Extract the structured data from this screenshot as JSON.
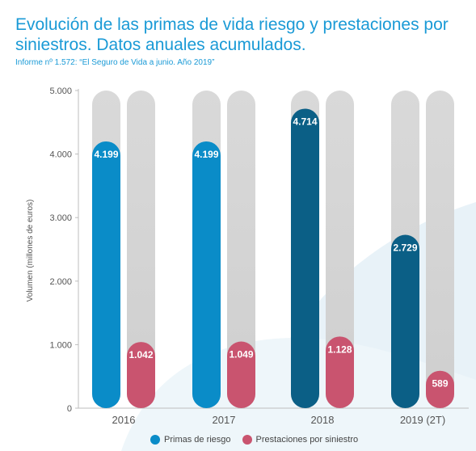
{
  "header": {
    "title": "Evolución de las primas de vida riesgo y prestaciones por siniestros. Datos anuales acumulados.",
    "subtitle": "Informe nº 1.572: “El Seguro de Vida a junio. Año 2019”"
  },
  "chart_data": {
    "type": "bar",
    "categories": [
      "2016",
      "2017",
      "2018",
      "2019 (2T)"
    ],
    "series": [
      {
        "name": "Primas de riesgo",
        "values": [
          4199,
          4199,
          4714,
          2729
        ],
        "labels": [
          "4.199",
          "4.199",
          "4.714",
          "2.729"
        ]
      },
      {
        "name": "Prestaciones por siniestro",
        "values": [
          1042,
          1049,
          1128,
          589
        ],
        "labels": [
          "1.042",
          "1.049",
          "1.128",
          "589"
        ]
      }
    ],
    "ylabel": "Volumen (millones de euros)",
    "ylim": [
      0,
      5000
    ],
    "yticks": [
      "0",
      "1.000",
      "2.000",
      "3.000",
      "4.000",
      "5.000"
    ],
    "legend_position": "bottom",
    "colors": {
      "primas": "#0a8cc8",
      "primas_2018_2019": "#0b5f86",
      "prestaciones": "#c9546f",
      "track": "#d6d6d6"
    }
  },
  "legend": {
    "primas_label": "Primas de riesgo",
    "prestaciones_label": "Prestaciones por siniestro"
  }
}
